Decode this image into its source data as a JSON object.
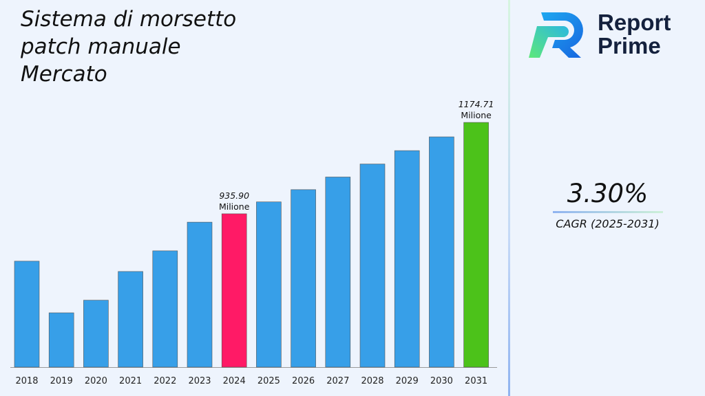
{
  "chart_data": {
    "type": "bar",
    "title": "Sistema di morsetto patch manuale Mercato",
    "title_lines": [
      "Sistema di morsetto",
      "patch manuale",
      "Mercato"
    ],
    "categories": [
      "2018",
      "2019",
      "2020",
      "2021",
      "2022",
      "2023",
      "2024",
      "2025",
      "2026",
      "2027",
      "2028",
      "2029",
      "2030",
      "2031"
    ],
    "values": [
      812,
      677,
      710,
      785,
      839,
      914,
      935.9,
      967,
      999,
      1032,
      1066,
      1101,
      1137,
      1174.71
    ],
    "ylim": [
      535,
      1200
    ],
    "grid": false,
    "xlabel": "",
    "ylabel": "",
    "colors": {
      "default": "#379fe8",
      "highlight_2024": "#ff1a66",
      "highlight_2031": "#4cc21a"
    },
    "annotations": [
      {
        "category": "2024",
        "value_label": "935.90",
        "unit_label": "Milione"
      },
      {
        "category": "2031",
        "value_label": "1174.71",
        "unit_label": "Milione"
      }
    ]
  },
  "brand": {
    "name_line1": "Report",
    "name_line2": "Prime"
  },
  "cagr": {
    "value": "3.30%",
    "label": "CAGR (2025-2031)"
  }
}
